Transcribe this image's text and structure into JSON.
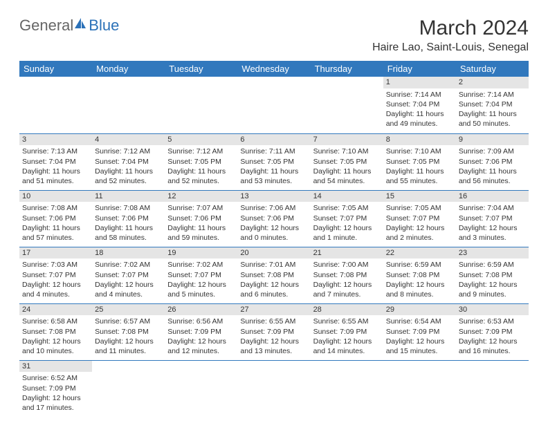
{
  "brand": {
    "part1": "General",
    "part2": "Blue"
  },
  "title": "March 2024",
  "location": "Haire Lao, Saint-Louis, Senegal",
  "accent_color": "#3178bd",
  "day_headers": [
    "Sunday",
    "Monday",
    "Tuesday",
    "Wednesday",
    "Thursday",
    "Friday",
    "Saturday"
  ],
  "weeks": [
    [
      null,
      null,
      null,
      null,
      null,
      {
        "n": "1",
        "sunrise": "Sunrise: 7:14 AM",
        "sunset": "Sunset: 7:04 PM",
        "daylight": "Daylight: 11 hours and 49 minutes."
      },
      {
        "n": "2",
        "sunrise": "Sunrise: 7:14 AM",
        "sunset": "Sunset: 7:04 PM",
        "daylight": "Daylight: 11 hours and 50 minutes."
      }
    ],
    [
      {
        "n": "3",
        "sunrise": "Sunrise: 7:13 AM",
        "sunset": "Sunset: 7:04 PM",
        "daylight": "Daylight: 11 hours and 51 minutes."
      },
      {
        "n": "4",
        "sunrise": "Sunrise: 7:12 AM",
        "sunset": "Sunset: 7:04 PM",
        "daylight": "Daylight: 11 hours and 52 minutes."
      },
      {
        "n": "5",
        "sunrise": "Sunrise: 7:12 AM",
        "sunset": "Sunset: 7:05 PM",
        "daylight": "Daylight: 11 hours and 52 minutes."
      },
      {
        "n": "6",
        "sunrise": "Sunrise: 7:11 AM",
        "sunset": "Sunset: 7:05 PM",
        "daylight": "Daylight: 11 hours and 53 minutes."
      },
      {
        "n": "7",
        "sunrise": "Sunrise: 7:10 AM",
        "sunset": "Sunset: 7:05 PM",
        "daylight": "Daylight: 11 hours and 54 minutes."
      },
      {
        "n": "8",
        "sunrise": "Sunrise: 7:10 AM",
        "sunset": "Sunset: 7:05 PM",
        "daylight": "Daylight: 11 hours and 55 minutes."
      },
      {
        "n": "9",
        "sunrise": "Sunrise: 7:09 AM",
        "sunset": "Sunset: 7:06 PM",
        "daylight": "Daylight: 11 hours and 56 minutes."
      }
    ],
    [
      {
        "n": "10",
        "sunrise": "Sunrise: 7:08 AM",
        "sunset": "Sunset: 7:06 PM",
        "daylight": "Daylight: 11 hours and 57 minutes."
      },
      {
        "n": "11",
        "sunrise": "Sunrise: 7:08 AM",
        "sunset": "Sunset: 7:06 PM",
        "daylight": "Daylight: 11 hours and 58 minutes."
      },
      {
        "n": "12",
        "sunrise": "Sunrise: 7:07 AM",
        "sunset": "Sunset: 7:06 PM",
        "daylight": "Daylight: 11 hours and 59 minutes."
      },
      {
        "n": "13",
        "sunrise": "Sunrise: 7:06 AM",
        "sunset": "Sunset: 7:06 PM",
        "daylight": "Daylight: 12 hours and 0 minutes."
      },
      {
        "n": "14",
        "sunrise": "Sunrise: 7:05 AM",
        "sunset": "Sunset: 7:07 PM",
        "daylight": "Daylight: 12 hours and 1 minute."
      },
      {
        "n": "15",
        "sunrise": "Sunrise: 7:05 AM",
        "sunset": "Sunset: 7:07 PM",
        "daylight": "Daylight: 12 hours and 2 minutes."
      },
      {
        "n": "16",
        "sunrise": "Sunrise: 7:04 AM",
        "sunset": "Sunset: 7:07 PM",
        "daylight": "Daylight: 12 hours and 3 minutes."
      }
    ],
    [
      {
        "n": "17",
        "sunrise": "Sunrise: 7:03 AM",
        "sunset": "Sunset: 7:07 PM",
        "daylight": "Daylight: 12 hours and 4 minutes."
      },
      {
        "n": "18",
        "sunrise": "Sunrise: 7:02 AM",
        "sunset": "Sunset: 7:07 PM",
        "daylight": "Daylight: 12 hours and 4 minutes."
      },
      {
        "n": "19",
        "sunrise": "Sunrise: 7:02 AM",
        "sunset": "Sunset: 7:07 PM",
        "daylight": "Daylight: 12 hours and 5 minutes."
      },
      {
        "n": "20",
        "sunrise": "Sunrise: 7:01 AM",
        "sunset": "Sunset: 7:08 PM",
        "daylight": "Daylight: 12 hours and 6 minutes."
      },
      {
        "n": "21",
        "sunrise": "Sunrise: 7:00 AM",
        "sunset": "Sunset: 7:08 PM",
        "daylight": "Daylight: 12 hours and 7 minutes."
      },
      {
        "n": "22",
        "sunrise": "Sunrise: 6:59 AM",
        "sunset": "Sunset: 7:08 PM",
        "daylight": "Daylight: 12 hours and 8 minutes."
      },
      {
        "n": "23",
        "sunrise": "Sunrise: 6:59 AM",
        "sunset": "Sunset: 7:08 PM",
        "daylight": "Daylight: 12 hours and 9 minutes."
      }
    ],
    [
      {
        "n": "24",
        "sunrise": "Sunrise: 6:58 AM",
        "sunset": "Sunset: 7:08 PM",
        "daylight": "Daylight: 12 hours and 10 minutes."
      },
      {
        "n": "25",
        "sunrise": "Sunrise: 6:57 AM",
        "sunset": "Sunset: 7:08 PM",
        "daylight": "Daylight: 12 hours and 11 minutes."
      },
      {
        "n": "26",
        "sunrise": "Sunrise: 6:56 AM",
        "sunset": "Sunset: 7:09 PM",
        "daylight": "Daylight: 12 hours and 12 minutes."
      },
      {
        "n": "27",
        "sunrise": "Sunrise: 6:55 AM",
        "sunset": "Sunset: 7:09 PM",
        "daylight": "Daylight: 12 hours and 13 minutes."
      },
      {
        "n": "28",
        "sunrise": "Sunrise: 6:55 AM",
        "sunset": "Sunset: 7:09 PM",
        "daylight": "Daylight: 12 hours and 14 minutes."
      },
      {
        "n": "29",
        "sunrise": "Sunrise: 6:54 AM",
        "sunset": "Sunset: 7:09 PM",
        "daylight": "Daylight: 12 hours and 15 minutes."
      },
      {
        "n": "30",
        "sunrise": "Sunrise: 6:53 AM",
        "sunset": "Sunset: 7:09 PM",
        "daylight": "Daylight: 12 hours and 16 minutes."
      }
    ],
    [
      {
        "n": "31",
        "sunrise": "Sunrise: 6:52 AM",
        "sunset": "Sunset: 7:09 PM",
        "daylight": "Daylight: 12 hours and 17 minutes."
      },
      null,
      null,
      null,
      null,
      null,
      null
    ]
  ]
}
